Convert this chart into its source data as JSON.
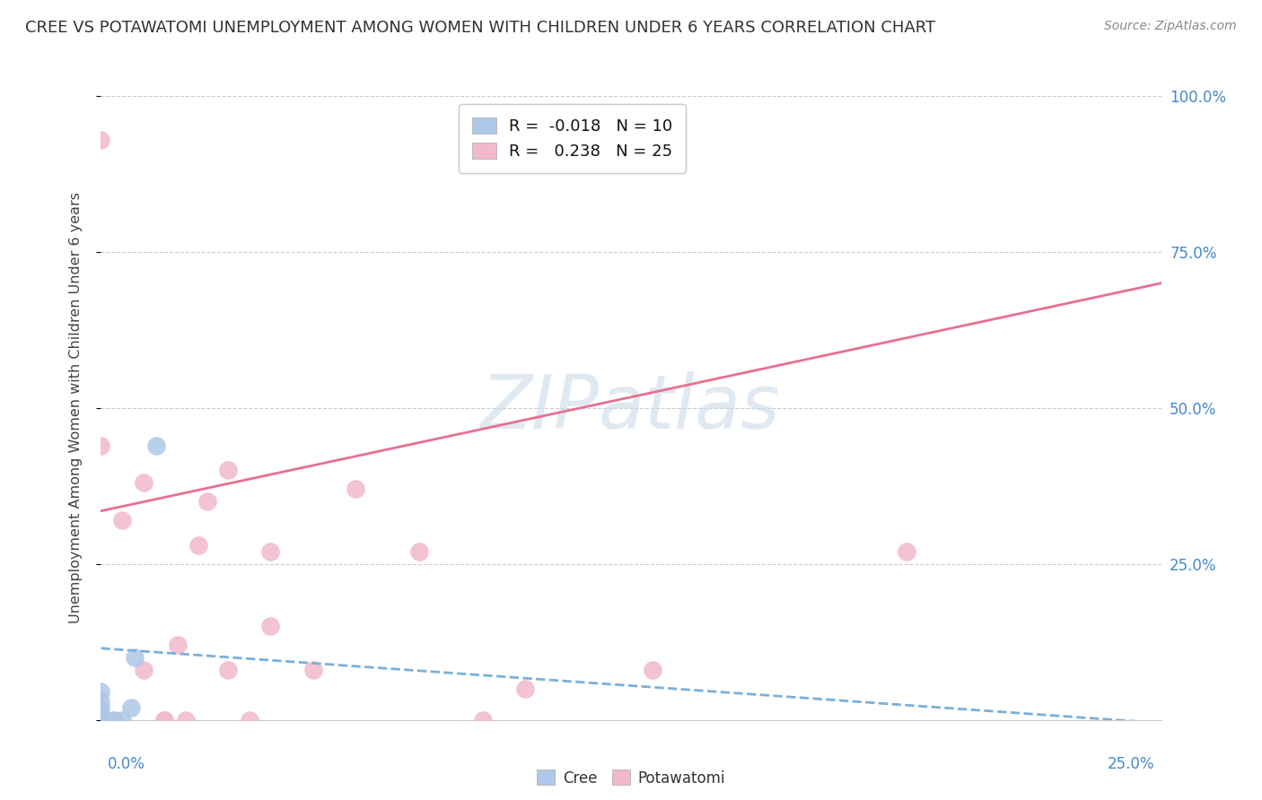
{
  "title": "CREE VS POTAWATOMI UNEMPLOYMENT AMONG WOMEN WITH CHILDREN UNDER 6 YEARS CORRELATION CHART",
  "source": "Source: ZipAtlas.com",
  "ylabel": "Unemployment Among Women with Children Under 6 years",
  "x_min": 0.0,
  "x_max": 0.25,
  "y_min": 0.0,
  "y_max": 1.0,
  "y_ticks": [
    0.0,
    0.25,
    0.5,
    0.75,
    1.0
  ],
  "y_tick_labels": [
    "",
    "25.0%",
    "50.0%",
    "75.0%",
    "100.0%"
  ],
  "cree_color": "#adc8e8",
  "potawatomi_color": "#f2b8cc",
  "cree_r": -0.018,
  "cree_n": 10,
  "potawatomi_r": 0.238,
  "potawatomi_n": 25,
  "cree_points_x": [
    0.0,
    0.0,
    0.0,
    0.0,
    0.0,
    0.003,
    0.005,
    0.007,
    0.008,
    0.013
  ],
  "cree_points_y": [
    0.0,
    0.01,
    0.02,
    0.03,
    0.045,
    0.0,
    0.0,
    0.02,
    0.1,
    0.44
  ],
  "potawatomi_points_x": [
    0.0,
    0.0,
    0.0,
    0.003,
    0.005,
    0.01,
    0.01,
    0.015,
    0.015,
    0.018,
    0.02,
    0.025,
    0.03,
    0.035,
    0.04,
    0.04,
    0.05,
    0.06,
    0.075,
    0.09,
    0.1,
    0.13,
    0.19,
    0.023,
    0.03
  ],
  "potawatomi_points_y": [
    0.0,
    0.44,
    0.93,
    0.0,
    0.32,
    0.08,
    0.38,
    0.0,
    0.0,
    0.12,
    0.0,
    0.35,
    0.4,
    0.0,
    0.15,
    0.27,
    0.08,
    0.37,
    0.27,
    0.0,
    0.05,
    0.08,
    0.27,
    0.28,
    0.08
  ],
  "watermark": "ZIPatlas",
  "background_color": "#ffffff",
  "grid_color": "#cccccc",
  "title_color": "#333333",
  "axis_label_color": "#444444",
  "tick_color": "#4488cc",
  "cree_line_color": "#7ab0d8",
  "potawatomi_line_color": "#e87090",
  "legend_r_color": "#2255aa",
  "cree_trend_x0": 0.0,
  "cree_trend_y0": 0.115,
  "cree_trend_x1": 0.25,
  "cree_trend_y1": -0.005,
  "pota_trend_x0": 0.0,
  "pota_trend_y0": 0.335,
  "pota_trend_x1": 0.25,
  "pota_trend_y1": 0.7
}
